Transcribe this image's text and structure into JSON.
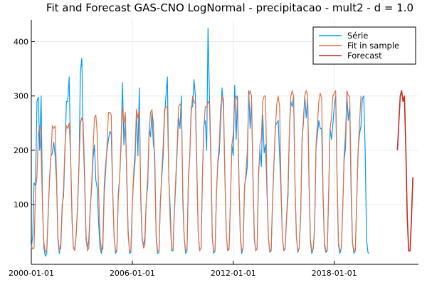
{
  "chart_data": {
    "type": "line",
    "title": "Fit and Forecast GAS-CNO LogNormal - precipitacao - mult2 - d = 1.0",
    "xlabel": "",
    "ylabel": "",
    "x_start": "2000-01-01",
    "x_end": "2023-01-01",
    "xlim": [
      2000.0,
      2023.0
    ],
    "ylim": [
      -10,
      440
    ],
    "x_ticks": [
      {
        "label": "2000-01-01",
        "value": 2000
      },
      {
        "label": "2006-01-01",
        "value": 2006
      },
      {
        "label": "2012-01-01",
        "value": 2012
      },
      {
        "label": "2018-01-01",
        "value": 2018
      }
    ],
    "y_ticks": [
      {
        "label": "100",
        "value": 100
      },
      {
        "label": "200",
        "value": 200
      },
      {
        "label": "300",
        "value": 300
      },
      {
        "label": "400",
        "value": 400
      }
    ],
    "grid": true,
    "legend_position": "top-right",
    "series": [
      {
        "name": "Série",
        "color": "#009AFA",
        "start": 2000.0,
        "step": 0.08333,
        "values": [
          20,
          42,
          140,
          135,
          290,
          298,
          200,
          300,
          95,
          20,
          5,
          10,
          85,
          145,
          190,
          195,
          215,
          190,
          140,
          35,
          10,
          30,
          100,
          115,
          200,
          290,
          290,
          335,
          190,
          80,
          20,
          20,
          45,
          95,
          170,
          345,
          370,
          225,
          145,
          35,
          20,
          35,
          95,
          130,
          185,
          210,
          145,
          130,
          65,
          20,
          10,
          30,
          135,
          175,
          200,
          220,
          235,
          230,
          125,
          45,
          10,
          15,
          120,
          150,
          210,
          325,
          210,
          255,
          165,
          55,
          10,
          12,
          100,
          150,
          180,
          275,
          190,
          315,
          110,
          35,
          25,
          40,
          110,
          135,
          240,
          225,
          270,
          210,
          195,
          40,
          10,
          12,
          105,
          150,
          190,
          265,
          300,
          335,
          145,
          95,
          15,
          15,
          85,
          140,
          200,
          260,
          240,
          300,
          105,
          40,
          10,
          15,
          150,
          190,
          280,
          280,
          330,
          300,
          170,
          50,
          15,
          20,
          155,
          245,
          255,
          200,
          425,
          300,
          200,
          40,
          10,
          15,
          125,
          175,
          195,
          255,
          315,
          275,
          155,
          45,
          15,
          20,
          115,
          210,
          190,
          320,
          220,
          300,
          150,
          40,
          10,
          20,
          135,
          150,
          170,
          310,
          240,
          290,
          150,
          35,
          15,
          20,
          160,
          200,
          170,
          265,
          195,
          210,
          125,
          40,
          12,
          15,
          105,
          175,
          245,
          250,
          255,
          190,
          125,
          40,
          15,
          20,
          75,
          115,
          235,
          290,
          280,
          300,
          135,
          40,
          12,
          20,
          75,
          220,
          250,
          300,
          260,
          295,
          140,
          30,
          10,
          20,
          55,
          205,
          230,
          255,
          240,
          240,
          110,
          25,
          12,
          15,
          120,
          240,
          220,
          250,
          280,
          300,
          140,
          25,
          10,
          20,
          90,
          180,
          205,
          300,
          255,
          280,
          120,
          30,
          10,
          15,
          110,
          200,
          230,
          245,
          295,
          300,
          200,
          35,
          12,
          10
        ]
      },
      {
        "name": "Fit in sample",
        "color": "#E26F46",
        "start": 2000.0,
        "step": 0.08333,
        "values": [
          25,
          18,
          20,
          130,
          150,
          230,
          245,
          200,
          90,
          30,
          12,
          15,
          80,
          150,
          190,
          245,
          240,
          245,
          150,
          40,
          15,
          20,
          90,
          130,
          210,
          245,
          240,
          250,
          190,
          70,
          20,
          15,
          45,
          100,
          175,
          250,
          260,
          250,
          160,
          45,
          15,
          20,
          90,
          140,
          200,
          260,
          265,
          230,
          120,
          40,
          15,
          18,
          120,
          160,
          210,
          270,
          270,
          265,
          130,
          40,
          15,
          15,
          110,
          150,
          220,
          280,
          250,
          270,
          150,
          45,
          15,
          15,
          100,
          160,
          200,
          275,
          260,
          275,
          120,
          40,
          20,
          25,
          110,
          150,
          235,
          270,
          275,
          250,
          170,
          45,
          15,
          15,
          100,
          160,
          210,
          275,
          280,
          280,
          150,
          70,
          18,
          18,
          90,
          150,
          210,
          280,
          285,
          280,
          120,
          40,
          15,
          18,
          140,
          190,
          270,
          300,
          290,
          285,
          160,
          50,
          15,
          20,
          150,
          240,
          280,
          280,
          290,
          285,
          180,
          40,
          15,
          15,
          120,
          180,
          210,
          280,
          300,
          295,
          150,
          45,
          15,
          18,
          110,
          210,
          230,
          295,
          300,
          290,
          150,
          45,
          15,
          20,
          130,
          160,
          200,
          300,
          310,
          300,
          160,
          40,
          15,
          18,
          150,
          210,
          220,
          290,
          300,
          300,
          140,
          40,
          15,
          15,
          110,
          180,
          240,
          285,
          300,
          280,
          140,
          40,
          15,
          18,
          80,
          130,
          240,
          300,
          310,
          300,
          140,
          40,
          15,
          18,
          80,
          210,
          260,
          300,
          310,
          300,
          150,
          35,
          15,
          18,
          60,
          210,
          250,
          290,
          305,
          295,
          120,
          30,
          15,
          15,
          120,
          240,
          260,
          300,
          305,
          310,
          150,
          30,
          15,
          18,
          90,
          190,
          230,
          310,
          300,
          300,
          140,
          30,
          15,
          15,
          110,
          200,
          250,
          300
        ]
      },
      {
        "name": "Forecast",
        "color": "#C42A1E",
        "start": 2021.75,
        "step": 0.08333,
        "values": [
          200,
          250,
          300,
          310,
          290,
          300,
          200,
          80,
          15,
          15,
          70,
          150
        ]
      }
    ]
  }
}
